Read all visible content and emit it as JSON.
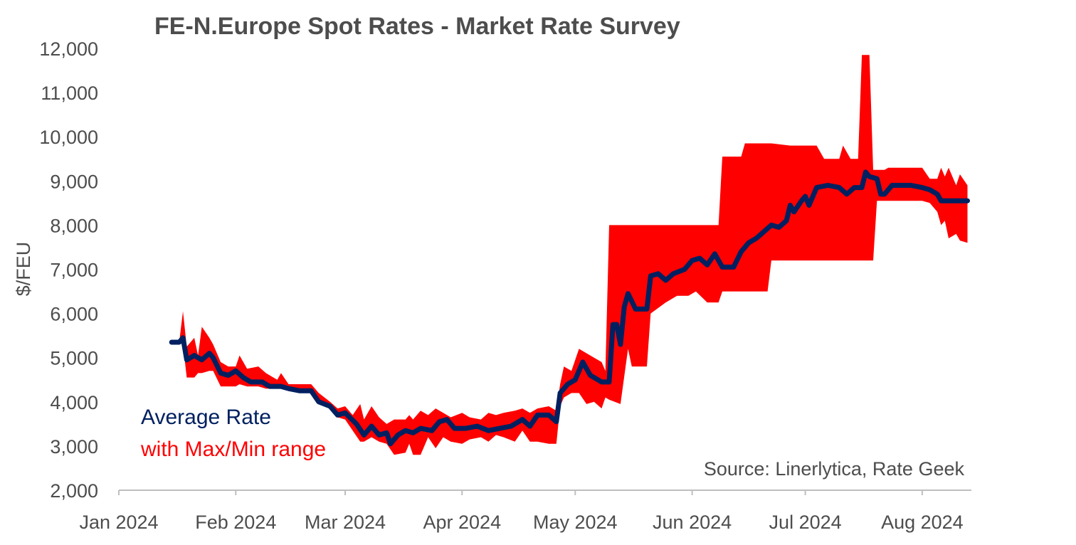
{
  "chart_data": {
    "type": "line",
    "title": "FE-N.Europe Spot Rates - Market Rate Survey",
    "ylabel": "$/FEU",
    "xlabel": "",
    "ylim": [
      2000,
      12000
    ],
    "yticks": [
      2000,
      3000,
      4000,
      5000,
      6000,
      7000,
      8000,
      9000,
      10000,
      11000,
      12000
    ],
    "ytick_labels": [
      "2,000",
      "3,000",
      "4,000",
      "5,000",
      "6,000",
      "7,000",
      "8,000",
      "9,000",
      "10,000",
      "11,000",
      "12,000"
    ],
    "xlim": [
      "2024-01-01",
      "2024-08-13"
    ],
    "xticks": [
      "2024-01-01",
      "2024-02-01",
      "2024-03-01",
      "2024-04-01",
      "2024-05-01",
      "2024-06-01",
      "2024-07-01",
      "2024-08-01"
    ],
    "xtick_labels": [
      "Jan 2024",
      "Feb 2024",
      "Mar 2024",
      "Apr 2024",
      "May 2024",
      "Jun 2024",
      "Jul 2024",
      "Aug 2024"
    ],
    "grid": false,
    "legend": [
      "Average Rate",
      "with Max/Min range"
    ],
    "annotation": "Source: Linerlytica, Rate Geek",
    "colors": {
      "average": "#002060",
      "range": "#ff0000",
      "text": "#4d4d4d",
      "axis": "#bfbfbf"
    },
    "series": [
      {
        "name": "Average Rate",
        "points": [
          [
            "2024-01-15",
            5350
          ],
          [
            "2024-01-17",
            5350
          ],
          [
            "2024-01-18",
            5450
          ],
          [
            "2024-01-19",
            4950
          ],
          [
            "2024-01-21",
            5050
          ],
          [
            "2024-01-23",
            4950
          ],
          [
            "2024-01-25",
            5100
          ],
          [
            "2024-01-26",
            5000
          ],
          [
            "2024-01-28",
            4650
          ],
          [
            "2024-01-30",
            4600
          ],
          [
            "2024-02-01",
            4700
          ],
          [
            "2024-02-03",
            4550
          ],
          [
            "2024-02-05",
            4450
          ],
          [
            "2024-02-08",
            4450
          ],
          [
            "2024-02-10",
            4350
          ],
          [
            "2024-02-13",
            4350
          ],
          [
            "2024-02-15",
            4300
          ],
          [
            "2024-02-18",
            4250
          ],
          [
            "2024-02-21",
            4250
          ],
          [
            "2024-02-23",
            4000
          ],
          [
            "2024-02-26",
            3900
          ],
          [
            "2024-02-28",
            3700
          ],
          [
            "2024-03-01",
            3750
          ],
          [
            "2024-03-04",
            3500
          ],
          [
            "2024-03-06",
            3250
          ],
          [
            "2024-03-08",
            3450
          ],
          [
            "2024-03-10",
            3250
          ],
          [
            "2024-03-12",
            3300
          ],
          [
            "2024-03-13",
            3050
          ],
          [
            "2024-03-15",
            3250
          ],
          [
            "2024-03-17",
            3350
          ],
          [
            "2024-03-19",
            3300
          ],
          [
            "2024-03-21",
            3400
          ],
          [
            "2024-03-24",
            3350
          ],
          [
            "2024-03-26",
            3550
          ],
          [
            "2024-03-28",
            3600
          ],
          [
            "2024-03-30",
            3400
          ],
          [
            "2024-04-02",
            3400
          ],
          [
            "2024-04-05",
            3450
          ],
          [
            "2024-04-08",
            3350
          ],
          [
            "2024-04-11",
            3400
          ],
          [
            "2024-04-14",
            3450
          ],
          [
            "2024-04-17",
            3600
          ],
          [
            "2024-04-19",
            3450
          ],
          [
            "2024-04-21",
            3700
          ],
          [
            "2024-04-24",
            3700
          ],
          [
            "2024-04-26",
            3550
          ],
          [
            "2024-04-27",
            4200
          ],
          [
            "2024-04-29",
            4400
          ],
          [
            "2024-05-01",
            4500
          ],
          [
            "2024-05-03",
            4900
          ],
          [
            "2024-05-05",
            4600
          ],
          [
            "2024-05-07",
            4500
          ],
          [
            "2024-05-08",
            4450
          ],
          [
            "2024-05-10",
            4450
          ],
          [
            "2024-05-11",
            5750
          ],
          [
            "2024-05-12",
            5750
          ],
          [
            "2024-05-13",
            5300
          ],
          [
            "2024-05-14",
            6150
          ],
          [
            "2024-05-15",
            6450
          ],
          [
            "2024-05-17",
            6100
          ],
          [
            "2024-05-20",
            6100
          ],
          [
            "2024-05-21",
            6850
          ],
          [
            "2024-05-23",
            6900
          ],
          [
            "2024-05-25",
            6750
          ],
          [
            "2024-05-27",
            6900
          ],
          [
            "2024-05-30",
            7000
          ],
          [
            "2024-06-01",
            7200
          ],
          [
            "2024-06-03",
            7250
          ],
          [
            "2024-06-05",
            7100
          ],
          [
            "2024-06-07",
            7350
          ],
          [
            "2024-06-09",
            7050
          ],
          [
            "2024-06-12",
            7050
          ],
          [
            "2024-06-14",
            7400
          ],
          [
            "2024-06-16",
            7600
          ],
          [
            "2024-06-18",
            7700
          ],
          [
            "2024-06-20",
            7850
          ],
          [
            "2024-06-22",
            8000
          ],
          [
            "2024-06-24",
            7950
          ],
          [
            "2024-06-26",
            8100
          ],
          [
            "2024-06-27",
            8450
          ],
          [
            "2024-06-28",
            8300
          ],
          [
            "2024-06-30",
            8550
          ],
          [
            "2024-07-01",
            8650
          ],
          [
            "2024-07-02",
            8450
          ],
          [
            "2024-07-04",
            8850
          ],
          [
            "2024-07-07",
            8900
          ],
          [
            "2024-07-10",
            8850
          ],
          [
            "2024-07-12",
            8700
          ],
          [
            "2024-07-14",
            8850
          ],
          [
            "2024-07-16",
            8850
          ],
          [
            "2024-07-17",
            9200
          ],
          [
            "2024-07-18",
            9100
          ],
          [
            "2024-07-20",
            9050
          ],
          [
            "2024-07-21",
            8700
          ],
          [
            "2024-07-22",
            8700
          ],
          [
            "2024-07-24",
            8900
          ],
          [
            "2024-07-27",
            8900
          ],
          [
            "2024-07-29",
            8900
          ],
          [
            "2024-08-01",
            8850
          ],
          [
            "2024-08-03",
            8800
          ],
          [
            "2024-08-05",
            8700
          ],
          [
            "2024-08-06",
            8550
          ],
          [
            "2024-08-13",
            8550
          ]
        ]
      },
      {
        "name": "with Max/Min range",
        "points": [
          [
            "2024-01-15",
            5350,
            5350
          ],
          [
            "2024-01-17",
            5350,
            5350
          ],
          [
            "2024-01-18",
            6050,
            5300
          ],
          [
            "2024-01-19",
            5250,
            4550
          ],
          [
            "2024-01-21",
            5450,
            4550
          ],
          [
            "2024-01-22",
            5050,
            4650
          ],
          [
            "2024-01-23",
            5700,
            4650
          ],
          [
            "2024-01-25",
            5450,
            4700
          ],
          [
            "2024-01-26",
            5300,
            4700
          ],
          [
            "2024-01-28",
            4900,
            4350
          ],
          [
            "2024-01-30",
            4800,
            4350
          ],
          [
            "2024-02-01",
            4800,
            4350
          ],
          [
            "2024-02-02",
            5050,
            4400
          ],
          [
            "2024-02-04",
            4750,
            4350
          ],
          [
            "2024-02-07",
            4800,
            4350
          ],
          [
            "2024-02-09",
            4650,
            4300
          ],
          [
            "2024-02-12",
            4500,
            4300
          ],
          [
            "2024-02-13",
            4650,
            4300
          ],
          [
            "2024-02-15",
            4400,
            4250
          ],
          [
            "2024-02-18",
            4400,
            4200
          ],
          [
            "2024-02-21",
            4400,
            4200
          ],
          [
            "2024-02-23",
            4200,
            3950
          ],
          [
            "2024-02-26",
            4000,
            3850
          ],
          [
            "2024-02-28",
            3850,
            3650
          ],
          [
            "2024-03-01",
            3900,
            3600
          ],
          [
            "2024-03-03",
            3700,
            3350
          ],
          [
            "2024-03-05",
            3950,
            3100
          ],
          [
            "2024-03-06",
            3600,
            3100
          ],
          [
            "2024-03-08",
            3900,
            3200
          ],
          [
            "2024-03-10",
            3650,
            3100
          ],
          [
            "2024-03-12",
            3500,
            3050
          ],
          [
            "2024-03-14",
            3600,
            2800
          ],
          [
            "2024-03-17",
            3600,
            2850
          ],
          [
            "2024-03-18",
            3700,
            3050
          ],
          [
            "2024-03-19",
            3600,
            2800
          ],
          [
            "2024-03-21",
            3800,
            2800
          ],
          [
            "2024-03-23",
            3700,
            3200
          ],
          [
            "2024-03-25",
            3850,
            2950
          ],
          [
            "2024-03-27",
            3750,
            3200
          ],
          [
            "2024-03-29",
            3650,
            3100
          ],
          [
            "2024-04-01",
            3750,
            3050
          ],
          [
            "2024-04-03",
            3650,
            3150
          ],
          [
            "2024-04-06",
            3600,
            3200
          ],
          [
            "2024-04-08",
            3750,
            3100
          ],
          [
            "2024-04-10",
            3700,
            3250
          ],
          [
            "2024-04-12",
            3750,
            3200
          ],
          [
            "2024-04-15",
            3800,
            3100
          ],
          [
            "2024-04-17",
            3850,
            3350
          ],
          [
            "2024-04-19",
            3750,
            3100
          ],
          [
            "2024-04-21",
            3850,
            3100
          ],
          [
            "2024-04-24",
            3900,
            3050
          ],
          [
            "2024-04-26",
            3800,
            3050
          ],
          [
            "2024-04-27",
            4400,
            3900
          ],
          [
            "2024-04-28",
            4800,
            4100
          ],
          [
            "2024-04-30",
            4700,
            4200
          ],
          [
            "2024-05-02",
            5200,
            4200
          ],
          [
            "2024-05-04",
            5100,
            3950
          ],
          [
            "2024-05-06",
            5000,
            4000
          ],
          [
            "2024-05-08",
            4900,
            3850
          ],
          [
            "2024-05-09",
            4700,
            4100
          ],
          [
            "2024-05-10",
            8000,
            4050
          ],
          [
            "2024-05-13",
            8000,
            3950
          ],
          [
            "2024-05-15",
            8000,
            5200
          ],
          [
            "2024-05-16",
            8000,
            4800
          ],
          [
            "2024-05-20",
            8000,
            4800
          ],
          [
            "2024-05-21",
            8000,
            6000
          ],
          [
            "2024-05-25",
            8000,
            6250
          ],
          [
            "2024-05-28",
            8000,
            6400
          ],
          [
            "2024-05-31",
            8000,
            6400
          ],
          [
            "2024-06-02",
            8000,
            6500
          ],
          [
            "2024-06-05",
            8000,
            6250
          ],
          [
            "2024-06-08",
            8000,
            6250
          ],
          [
            "2024-06-09",
            9550,
            6500
          ],
          [
            "2024-06-14",
            9550,
            6500
          ],
          [
            "2024-06-15",
            9850,
            6500
          ],
          [
            "2024-06-21",
            9850,
            6500
          ],
          [
            "2024-06-22",
            9850,
            7200
          ],
          [
            "2024-06-27",
            9800,
            7200
          ],
          [
            "2024-07-01",
            9800,
            7200
          ],
          [
            "2024-07-04",
            9800,
            7200
          ],
          [
            "2024-07-06",
            9500,
            7200
          ],
          [
            "2024-07-10",
            9500,
            7200
          ],
          [
            "2024-07-11",
            9800,
            7200
          ],
          [
            "2024-07-13",
            9500,
            7200
          ],
          [
            "2024-07-15",
            9500,
            7200
          ],
          [
            "2024-07-16",
            11850,
            7200
          ],
          [
            "2024-07-18",
            11850,
            7200
          ],
          [
            "2024-07-19",
            9250,
            7200
          ],
          [
            "2024-07-20",
            9250,
            8550
          ],
          [
            "2024-07-22",
            9250,
            8550
          ],
          [
            "2024-07-23",
            9300,
            8550
          ],
          [
            "2024-07-27",
            9300,
            8550
          ],
          [
            "2024-08-01",
            9300,
            8550
          ],
          [
            "2024-08-03",
            9050,
            8500
          ],
          [
            "2024-08-05",
            9050,
            8300
          ],
          [
            "2024-08-06",
            9300,
            8000
          ],
          [
            "2024-08-07",
            9100,
            8100
          ],
          [
            "2024-08-08",
            9300,
            7700
          ],
          [
            "2024-08-10",
            8900,
            7800
          ],
          [
            "2024-08-11",
            9150,
            7650
          ],
          [
            "2024-08-13",
            8900,
            7600
          ]
        ]
      }
    ]
  }
}
